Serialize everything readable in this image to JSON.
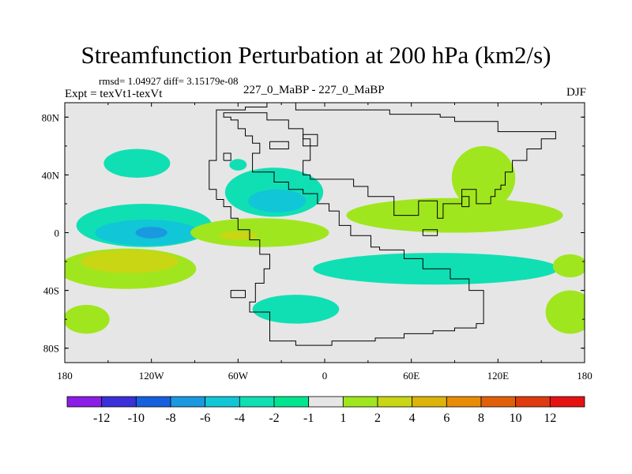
{
  "chart_data": {
    "type": "heatmap",
    "title": "Streamfunction Perturbation at 200 hPa (km2/s)",
    "stats": "rmsd= 1.04927 diff= 3.15179e-08",
    "subtitle_left": "Expt = texVt1-texVt",
    "subtitle_center": "227_0_MaBP - 227_0_MaBP",
    "subtitle_right": "DJF",
    "x_ticks": [
      {
        "value": -180,
        "label": "180"
      },
      {
        "value": -120,
        "label": "120W"
      },
      {
        "value": -60,
        "label": "60W"
      },
      {
        "value": 0,
        "label": "0"
      },
      {
        "value": 60,
        "label": "60E"
      },
      {
        "value": 120,
        "label": "120E"
      },
      {
        "value": 180,
        "label": "180"
      }
    ],
    "y_ticks": [
      {
        "value": 80,
        "label": "80N"
      },
      {
        "value": 40,
        "label": "40N"
      },
      {
        "value": 0,
        "label": "0"
      },
      {
        "value": -40,
        "label": "40S"
      },
      {
        "value": -80,
        "label": "80S"
      }
    ],
    "lon_range": [
      -180,
      180
    ],
    "lat_range": [
      -90,
      90
    ],
    "colorbar": {
      "colors": [
        "#8b1ee6",
        "#3b2fd9",
        "#1660e0",
        "#1a98e0",
        "#11c6d6",
        "#10dfb4",
        "#00e68f",
        "#e6e6e6",
        "#a0e61e",
        "#c8d614",
        "#dcb40a",
        "#e88c07",
        "#e0600a",
        "#e03a0f",
        "#e61212"
      ],
      "labels": [
        "-12",
        "-10",
        "-8",
        "-6",
        "-4",
        "-2",
        "-1",
        "1",
        "2",
        "4",
        "6",
        "8",
        "10",
        "12"
      ]
    },
    "contour_regions": [
      {
        "level": "-2 to -1",
        "color": "#10dfb4",
        "center": [
          -130,
          48
        ],
        "radius": [
          23,
          10
        ]
      },
      {
        "level": "-2 to -1",
        "color": "#10dfb4",
        "center": [
          -60,
          47
        ],
        "radius": [
          6,
          4
        ]
      },
      {
        "level": "-2 to -1",
        "color": "#10dfb4",
        "center": [
          -35,
          28
        ],
        "radius": [
          34,
          17
        ]
      },
      {
        "level": "-4 to -2",
        "color": "#11c6d6",
        "center": [
          -33,
          22
        ],
        "radius": [
          20,
          8
        ]
      },
      {
        "level": "-2 to -1",
        "color": "#10dfb4",
        "center": [
          -125,
          5
        ],
        "radius": [
          47,
          15
        ]
      },
      {
        "level": "-4 to -2",
        "color": "#11c6d6",
        "center": [
          -123,
          0
        ],
        "radius": [
          36,
          9
        ]
      },
      {
        "level": "-6 to -4",
        "color": "#1a98e0",
        "center": [
          -120,
          0
        ],
        "radius": [
          11,
          4
        ]
      },
      {
        "level": "1 to 2",
        "color": "#a0e61e",
        "center": [
          -137,
          -25
        ],
        "radius": [
          48,
          14
        ]
      },
      {
        "level": "2 to 4",
        "color": "#c8d614",
        "center": [
          -135,
          -20
        ],
        "radius": [
          34,
          8
        ]
      },
      {
        "level": "1 to 2",
        "color": "#a0e61e",
        "center": [
          -45,
          0
        ],
        "radius": [
          48,
          10
        ]
      },
      {
        "level": "2 to 4",
        "color": "#c8d614",
        "center": [
          -60,
          -2
        ],
        "radius": [
          13,
          3
        ]
      },
      {
        "level": "-2 to -1",
        "color": "#10dfb4",
        "center": [
          77,
          -25
        ],
        "radius": [
          85,
          11
        ]
      },
      {
        "level": "1 to 2",
        "color": "#a0e61e",
        "center": [
          90,
          12
        ],
        "radius": [
          75,
          12
        ]
      },
      {
        "level": "1 to 2",
        "color": "#a0e61e",
        "center": [
          110,
          38
        ],
        "radius": [
          22,
          22
        ]
      },
      {
        "level": "1 to 2",
        "color": "#a0e61e",
        "center": [
          -165,
          -60
        ],
        "radius": [
          16,
          10
        ]
      },
      {
        "level": "-2 to -1",
        "color": "#10dfb4",
        "center": [
          -20,
          -53
        ],
        "radius": [
          30,
          10
        ]
      },
      {
        "level": "1 to 2",
        "color": "#a0e61e",
        "center": [
          170,
          -55
        ],
        "radius": [
          17,
          15
        ]
      },
      {
        "level": "1 to 2",
        "color": "#a0e61e",
        "center": [
          170,
          -23
        ],
        "radius": [
          12,
          8
        ]
      }
    ],
    "coastlines": [
      [
        [
          -75,
          23
        ],
        [
          -70,
          23
        ],
        [
          -70,
          18
        ],
        [
          -65,
          18
        ],
        [
          -65,
          10
        ],
        [
          -60,
          10
        ],
        [
          -60,
          2
        ],
        [
          -52,
          2
        ],
        [
          -52,
          -5
        ],
        [
          -45,
          -5
        ],
        [
          -45,
          -15
        ],
        [
          -38,
          -15
        ],
        [
          -38,
          -25
        ],
        [
          -42,
          -25
        ],
        [
          -42,
          -35
        ],
        [
          -48,
          -35
        ],
        [
          -48,
          -48
        ],
        [
          -52,
          -48
        ],
        [
          -52,
          -55
        ],
        [
          -38,
          -55
        ],
        [
          -38,
          -75
        ],
        [
          -20,
          -75
        ],
        [
          -20,
          -78
        ],
        [
          5,
          -78
        ],
        [
          5,
          -75
        ],
        [
          35,
          -75
        ],
        [
          35,
          -73
        ],
        [
          55,
          -73
        ],
        [
          55,
          -70
        ],
        [
          75,
          -70
        ],
        [
          75,
          -68
        ],
        [
          90,
          -68
        ],
        [
          90,
          -66
        ],
        [
          105,
          -66
        ],
        [
          105,
          -63
        ],
        [
          110,
          -63
        ],
        [
          110,
          -40
        ],
        [
          100,
          -40
        ],
        [
          100,
          -32
        ],
        [
          87,
          -32
        ],
        [
          87,
          -25
        ],
        [
          68,
          -25
        ],
        [
          68,
          -18
        ],
        [
          55,
          -18
        ],
        [
          55,
          -12
        ],
        [
          38,
          -12
        ],
        [
          38,
          -10
        ],
        [
          32,
          -10
        ],
        [
          32,
          -2
        ],
        [
          18,
          -2
        ],
        [
          18,
          5
        ],
        [
          10,
          5
        ],
        [
          10,
          15
        ],
        [
          3,
          15
        ],
        [
          3,
          20
        ],
        [
          -5,
          20
        ],
        [
          -5,
          27
        ],
        [
          -15,
          27
        ],
        [
          -15,
          30
        ],
        [
          -25,
          30
        ],
        [
          -25,
          35
        ],
        [
          -35,
          35
        ],
        [
          -35,
          42
        ],
        [
          -50,
          42
        ],
        [
          -50,
          55
        ],
        [
          -45,
          55
        ],
        [
          -45,
          62
        ],
        [
          -50,
          62
        ],
        [
          -50,
          67
        ],
        [
          -55,
          67
        ],
        [
          -55,
          72
        ],
        [
          -60,
          72
        ],
        [
          -60,
          78
        ],
        [
          -65,
          78
        ],
        [
          -65,
          80
        ],
        [
          -70,
          80
        ],
        [
          -70,
          83
        ],
        [
          -40,
          83
        ],
        [
          -40,
          78
        ],
        [
          -25,
          78
        ],
        [
          -25,
          72
        ],
        [
          -15,
          72
        ],
        [
          -15,
          65
        ],
        [
          -10,
          65
        ],
        [
          -10,
          50
        ],
        [
          -15,
          50
        ],
        [
          -15,
          40
        ],
        [
          -10,
          40
        ],
        [
          -10,
          37
        ],
        [
          20,
          37
        ],
        [
          20,
          32
        ],
        [
          30,
          32
        ],
        [
          30,
          25
        ],
        [
          48,
          25
        ],
        [
          48,
          12
        ],
        [
          65,
          12
        ],
        [
          65,
          22
        ],
        [
          78,
          22
        ],
        [
          78,
          10
        ],
        [
          82,
          10
        ],
        [
          82,
          20
        ],
        [
          95,
          20
        ],
        [
          95,
          30
        ],
        [
          105,
          30
        ],
        [
          105,
          20
        ],
        [
          115,
          20
        ],
        [
          115,
          25
        ],
        [
          118,
          25
        ],
        [
          118,
          30
        ],
        [
          122,
          30
        ],
        [
          122,
          33
        ],
        [
          125,
          33
        ],
        [
          125,
          42
        ],
        [
          130,
          42
        ],
        [
          130,
          50
        ],
        [
          140,
          50
        ],
        [
          140,
          58
        ],
        [
          150,
          58
        ],
        [
          150,
          65
        ],
        [
          160,
          65
        ],
        [
          160,
          70
        ],
        [
          120,
          70
        ],
        [
          120,
          77
        ],
        [
          90,
          77
        ],
        [
          90,
          80
        ],
        [
          80,
          80
        ],
        [
          80,
          82
        ],
        [
          45,
          82
        ],
        [
          45,
          85
        ],
        [
          -20,
          85
        ],
        [
          -20,
          90
        ],
        [
          -40,
          90
        ],
        [
          -40,
          87
        ],
        [
          -55,
          87
        ],
        [
          -55,
          85
        ],
        [
          -75,
          85
        ],
        [
          -75,
          50
        ],
        [
          -80,
          50
        ],
        [
          -80,
          30
        ],
        [
          -75,
          30
        ],
        [
          -75,
          23
        ]
      ],
      [
        [
          -65,
          -45
        ],
        [
          -55,
          -45
        ],
        [
          -55,
          -40
        ],
        [
          -65,
          -40
        ],
        [
          -65,
          -45
        ]
      ],
      [
        [
          -70,
          50
        ],
        [
          -65,
          50
        ],
        [
          -65,
          55
        ],
        [
          -70,
          55
        ],
        [
          -70,
          50
        ]
      ],
      [
        [
          -38,
          63
        ],
        [
          -25,
          63
        ],
        [
          -25,
          58
        ],
        [
          -38,
          58
        ],
        [
          -38,
          63
        ]
      ],
      [
        [
          -15,
          68
        ],
        [
          -5,
          68
        ],
        [
          -5,
          60
        ],
        [
          -15,
          60
        ],
        [
          -15,
          68
        ]
      ],
      [
        [
          68,
          -2
        ],
        [
          78,
          -2
        ],
        [
          78,
          2
        ],
        [
          68,
          2
        ],
        [
          68,
          -2
        ]
      ],
      [
        [
          95,
          18
        ],
        [
          100,
          18
        ],
        [
          100,
          25
        ],
        [
          95,
          25
        ],
        [
          95,
          18
        ]
      ]
    ]
  }
}
